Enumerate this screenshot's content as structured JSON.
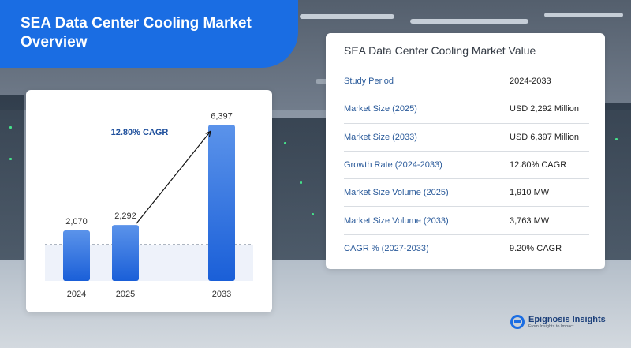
{
  "banner": {
    "title": "SEA Data Center Cooling Market Overview"
  },
  "chart_data": {
    "type": "bar",
    "categories": [
      "2024",
      "2025",
      "2033"
    ],
    "values": [
      2070,
      2292,
      6397
    ],
    "value_labels": [
      "2,070",
      "2,292",
      "6,397"
    ],
    "annotation": "12.80% CAGR",
    "title": "",
    "xlabel": "",
    "ylabel": "",
    "ylim": [
      0,
      6600
    ],
    "grid": false,
    "colors": {
      "bar_top": "#5b93ea",
      "bar_bottom": "#1a5fd8",
      "arrow": "#111111",
      "annotation": "#1e4f9c"
    }
  },
  "table": {
    "title": "SEA Data Center Cooling Market Value",
    "rows": [
      {
        "key": "Study Period",
        "value": "2024-2033"
      },
      {
        "key": "Market Size (2025)",
        "value": "USD 2,292 Million"
      },
      {
        "key": "Market Size (2033)",
        "value": "USD 6,397 Million"
      },
      {
        "key": "Growth Rate (2024-2033)",
        "value": "12.80% CAGR"
      },
      {
        "key": "Market Size Volume  (2025)",
        "value": "1,910 MW"
      },
      {
        "key": "Market Size Volume (2033)",
        "value": "3,763 MW"
      },
      {
        "key": "CAGR % (2027-2033)",
        "value": "9.20% CAGR"
      }
    ]
  },
  "logo": {
    "name": "Epignosis Insights",
    "tagline": "From Insights to Impact",
    "icon": "epignosis-logo-icon"
  },
  "colors": {
    "accent": "#1a6de3",
    "key_text": "#2a5a9a"
  }
}
